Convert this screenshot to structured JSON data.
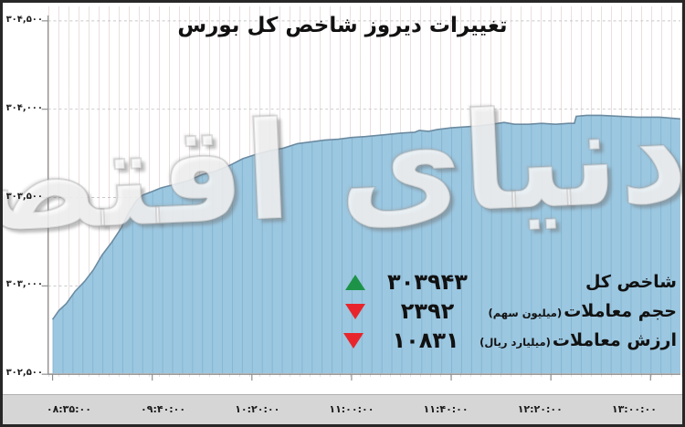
{
  "chart": {
    "title": "تغییرات دیروز شاخص کل بورس",
    "watermark": "دنیای اقتصاد",
    "y_axis": {
      "ticks": [
        {
          "label": "۳۰۴,۵۰۰",
          "value": 304500
        },
        {
          "label": "۳۰۴,۰۰۰",
          "value": 304000
        },
        {
          "label": "۳۰۳,۵۰۰",
          "value": 303500
        },
        {
          "label": "۳۰۳,۰۰۰",
          "value": 303000
        },
        {
          "label": "۳۰۲,۵۰۰",
          "value": 302500
        }
      ]
    },
    "x_axis": {
      "labels": [
        "۰۸:۳۵:۰۰",
        "۰۹:۴۰:۰۰",
        "۱۰:۲۰:۰۰",
        "۱۱:۰۰:۰۰",
        "۱۱:۴۰:۰۰",
        "۱۲:۲۰:۰۰",
        "۱۳:۰۰:۰۰"
      ]
    }
  },
  "chart_data": {
    "type": "area",
    "title": "تغییرات دیروز شاخص کل بورس",
    "xlabel": "",
    "ylabel": "",
    "ylim": [
      302500,
      304500
    ],
    "x_axis_labels": [
      "08:35:00",
      "09:40:00",
      "10:20:00",
      "11:00:00",
      "11:40:00",
      "12:20:00",
      "13:00:00"
    ],
    "grid": true,
    "series": [
      {
        "name": "شاخص کل",
        "final_value": 303943,
        "points": [
          {
            "x_pct": 0.0,
            "value": 302810
          },
          {
            "x_pct": 1.0,
            "value": 302860
          },
          {
            "x_pct": 2.2,
            "value": 302900
          },
          {
            "x_pct": 3.6,
            "value": 302970
          },
          {
            "x_pct": 5.1,
            "value": 303025
          },
          {
            "x_pct": 6.5,
            "value": 303090
          },
          {
            "x_pct": 7.9,
            "value": 303175
          },
          {
            "x_pct": 9.4,
            "value": 303245
          },
          {
            "x_pct": 10.8,
            "value": 303320
          },
          {
            "x_pct": 12.3,
            "value": 303425
          },
          {
            "x_pct": 13.4,
            "value": 303485
          },
          {
            "x_pct": 14.4,
            "value": 303515
          },
          {
            "x_pct": 15.9,
            "value": 303535
          },
          {
            "x_pct": 17.3,
            "value": 303555
          },
          {
            "x_pct": 19.5,
            "value": 303575
          },
          {
            "x_pct": 21.6,
            "value": 303595
          },
          {
            "x_pct": 23.8,
            "value": 303630
          },
          {
            "x_pct": 26.0,
            "value": 303650
          },
          {
            "x_pct": 28.1,
            "value": 303680
          },
          {
            "x_pct": 30.3,
            "value": 303720
          },
          {
            "x_pct": 32.5,
            "value": 303745
          },
          {
            "x_pct": 34.6,
            "value": 303765
          },
          {
            "x_pct": 36.8,
            "value": 303780
          },
          {
            "x_pct": 39.0,
            "value": 303805
          },
          {
            "x_pct": 41.1,
            "value": 303815
          },
          {
            "x_pct": 43.3,
            "value": 303825
          },
          {
            "x_pct": 45.5,
            "value": 303830
          },
          {
            "x_pct": 47.6,
            "value": 303840
          },
          {
            "x_pct": 49.8,
            "value": 303845
          },
          {
            "x_pct": 52.7,
            "value": 303855
          },
          {
            "x_pct": 55.6,
            "value": 303865
          },
          {
            "x_pct": 57.7,
            "value": 303870
          },
          {
            "x_pct": 58.4,
            "value": 303880
          },
          {
            "x_pct": 59.9,
            "value": 303875
          },
          {
            "x_pct": 61.3,
            "value": 303885
          },
          {
            "x_pct": 63.5,
            "value": 303895
          },
          {
            "x_pct": 65.7,
            "value": 303900
          },
          {
            "x_pct": 67.8,
            "value": 303905
          },
          {
            "x_pct": 70.0,
            "value": 303915
          },
          {
            "x_pct": 71.9,
            "value": 303925
          },
          {
            "x_pct": 73.6,
            "value": 303915
          },
          {
            "x_pct": 75.8,
            "value": 303915
          },
          {
            "x_pct": 77.9,
            "value": 303920
          },
          {
            "x_pct": 80.1,
            "value": 303915
          },
          {
            "x_pct": 82.2,
            "value": 303920
          },
          {
            "x_pct": 83.1,
            "value": 303920
          },
          {
            "x_pct": 83.4,
            "value": 303960
          },
          {
            "x_pct": 85.1,
            "value": 303965
          },
          {
            "x_pct": 87.3,
            "value": 303965
          },
          {
            "x_pct": 90.2,
            "value": 303960
          },
          {
            "x_pct": 93.1,
            "value": 303955
          },
          {
            "x_pct": 96.7,
            "value": 303955
          },
          {
            "x_pct": 100.0,
            "value": 303945
          }
        ]
      }
    ]
  },
  "legend": {
    "rows": [
      {
        "label": "شاخص کل",
        "unit": "",
        "value": "۳۰۳۹۴۳",
        "trend": "up"
      },
      {
        "label": "حجم معاملات",
        "unit": "(میلیون سهم)",
        "value": "۲۳۹۲",
        "trend": "down"
      },
      {
        "label": "ارزش معاملات",
        "unit": "(میلیارد ریال)",
        "value": "۱۰۸۳۱",
        "trend": "down"
      }
    ]
  },
  "colors": {
    "area_fill": "#9cc7e0",
    "area_stripe": "#85b6d3",
    "area_edge": "#6b8ba1",
    "up_green": "#1d9348",
    "down_red": "#e8252c",
    "strip_bg": "#d6d6d6",
    "grid_line": "#c6c6c6",
    "axis_line": "#8f8f8f",
    "border": "#272727",
    "text": "#111111"
  }
}
